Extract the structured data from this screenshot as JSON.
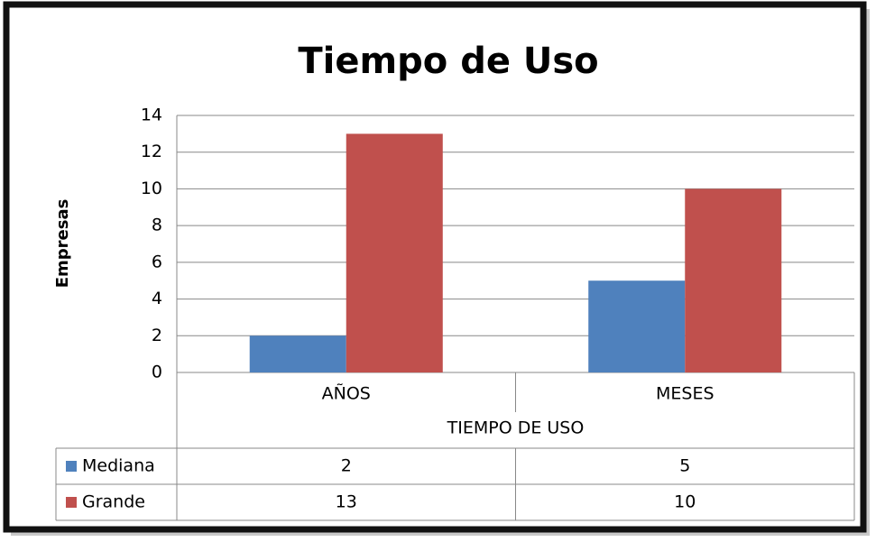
{
  "chart_data": {
    "type": "bar",
    "title": "Tiempo de Uso",
    "y_label": "Empresas",
    "x_label": "TIEMPO DE USO",
    "categories": [
      "AÑOS",
      "MESES"
    ],
    "series": [
      {
        "name": "Mediana",
        "color": "#4f81bd",
        "values": [
          2,
          5
        ]
      },
      {
        "name": "Grande",
        "color": "#c0504d",
        "values": [
          13,
          10
        ]
      }
    ],
    "ylim": [
      0,
      14
    ],
    "yticks": [
      0,
      2,
      4,
      6,
      8,
      10,
      12,
      14
    ],
    "grid": true,
    "data_table": true
  }
}
